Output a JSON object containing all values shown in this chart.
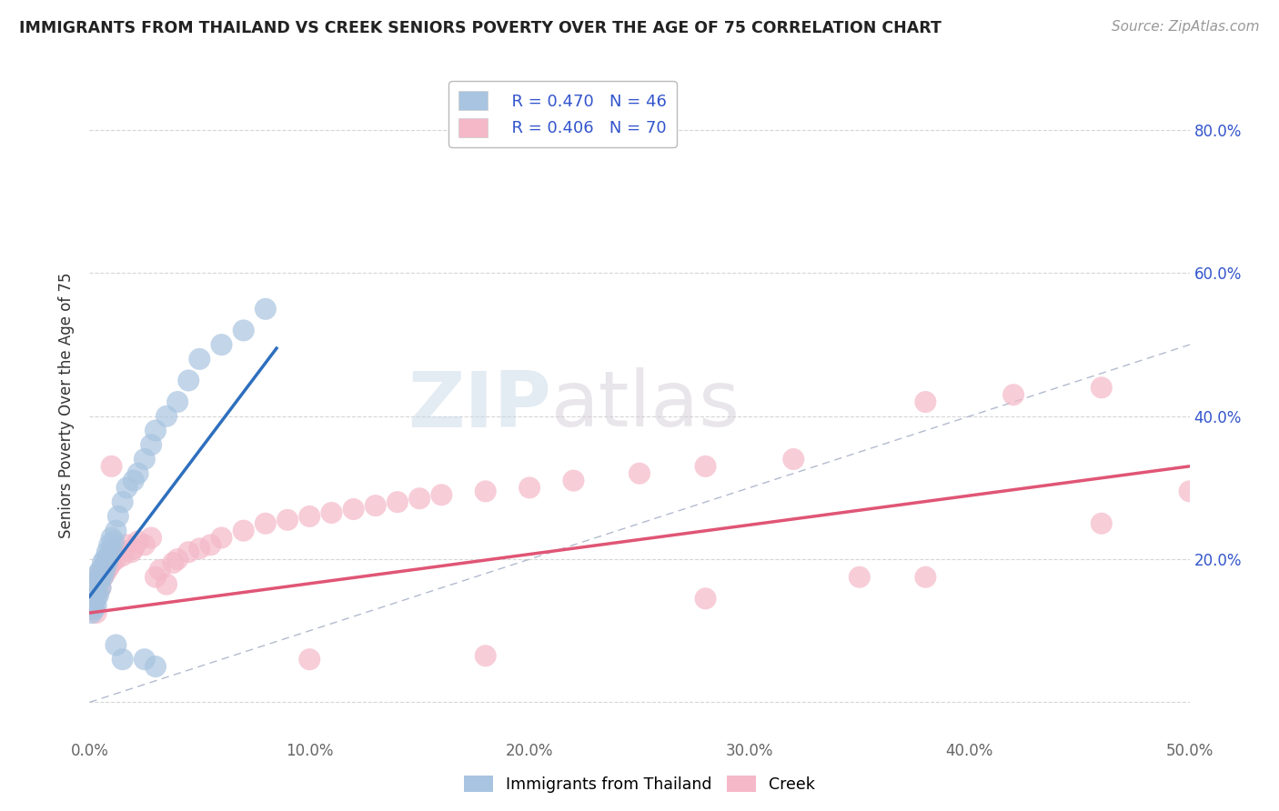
{
  "title": "IMMIGRANTS FROM THAILAND VS CREEK SENIORS POVERTY OVER THE AGE OF 75 CORRELATION CHART",
  "source": "Source: ZipAtlas.com",
  "ylabel": "Seniors Poverty Over the Age of 75",
  "xlim": [
    0.0,
    0.5
  ],
  "ylim": [
    -0.05,
    0.88
  ],
  "thailand_R": 0.47,
  "thailand_N": 46,
  "creek_R": 0.406,
  "creek_N": 70,
  "thailand_color": "#a8c4e0",
  "creek_color": "#f4b8c8",
  "thailand_line_color": "#2e6fbe",
  "creek_line_color": "#e05575",
  "diagonal_color": "#aab4c8",
  "watermark_zip": "ZIP",
  "watermark_atlas": "atlas",
  "thailand_scatter_x": [
    0.001,
    0.001,
    0.002,
    0.002,
    0.002,
    0.003,
    0.003,
    0.003,
    0.003,
    0.004,
    0.004,
    0.004,
    0.005,
    0.005,
    0.005,
    0.006,
    0.006,
    0.007,
    0.007,
    0.008,
    0.008,
    0.009,
    0.009,
    0.01,
    0.01,
    0.011,
    0.012,
    0.013,
    0.015,
    0.017,
    0.02,
    0.022,
    0.025,
    0.028,
    0.03,
    0.035,
    0.04,
    0.045,
    0.05,
    0.06,
    0.07,
    0.08,
    0.03,
    0.025,
    0.015,
    0.012
  ],
  "thailand_scatter_y": [
    0.125,
    0.14,
    0.13,
    0.15,
    0.16,
    0.145,
    0.135,
    0.155,
    0.165,
    0.15,
    0.17,
    0.18,
    0.175,
    0.185,
    0.16,
    0.175,
    0.195,
    0.185,
    0.2,
    0.195,
    0.21,
    0.205,
    0.22,
    0.215,
    0.23,
    0.225,
    0.24,
    0.26,
    0.28,
    0.3,
    0.31,
    0.32,
    0.34,
    0.36,
    0.38,
    0.4,
    0.42,
    0.45,
    0.48,
    0.5,
    0.52,
    0.55,
    0.05,
    0.06,
    0.06,
    0.08
  ],
  "creek_scatter_x": [
    0.001,
    0.001,
    0.002,
    0.002,
    0.002,
    0.003,
    0.003,
    0.003,
    0.004,
    0.004,
    0.004,
    0.005,
    0.005,
    0.005,
    0.006,
    0.006,
    0.007,
    0.007,
    0.008,
    0.008,
    0.009,
    0.009,
    0.01,
    0.01,
    0.011,
    0.012,
    0.013,
    0.015,
    0.017,
    0.019,
    0.02,
    0.022,
    0.025,
    0.028,
    0.03,
    0.032,
    0.035,
    0.038,
    0.04,
    0.045,
    0.05,
    0.055,
    0.06,
    0.07,
    0.08,
    0.09,
    0.1,
    0.11,
    0.12,
    0.13,
    0.14,
    0.15,
    0.16,
    0.18,
    0.2,
    0.22,
    0.25,
    0.28,
    0.32,
    0.38,
    0.42,
    0.46,
    0.5,
    0.35,
    0.18,
    0.1,
    0.28,
    0.38,
    0.46,
    0.01
  ],
  "creek_scatter_y": [
    0.13,
    0.145,
    0.135,
    0.155,
    0.14,
    0.15,
    0.16,
    0.125,
    0.165,
    0.155,
    0.175,
    0.17,
    0.18,
    0.16,
    0.185,
    0.175,
    0.19,
    0.18,
    0.195,
    0.185,
    0.2,
    0.19,
    0.205,
    0.195,
    0.21,
    0.2,
    0.215,
    0.205,
    0.22,
    0.21,
    0.215,
    0.225,
    0.22,
    0.23,
    0.175,
    0.185,
    0.165,
    0.195,
    0.2,
    0.21,
    0.215,
    0.22,
    0.23,
    0.24,
    0.25,
    0.255,
    0.26,
    0.265,
    0.27,
    0.275,
    0.28,
    0.285,
    0.29,
    0.295,
    0.3,
    0.31,
    0.32,
    0.33,
    0.34,
    0.42,
    0.43,
    0.44,
    0.295,
    0.175,
    0.065,
    0.06,
    0.145,
    0.175,
    0.25,
    0.33
  ],
  "thailand_line_x": [
    0.0,
    0.085
  ],
  "thailand_line_y": [
    0.148,
    0.495
  ],
  "creek_line_x": [
    0.0,
    0.5
  ],
  "creek_line_y": [
    0.125,
    0.33
  ]
}
